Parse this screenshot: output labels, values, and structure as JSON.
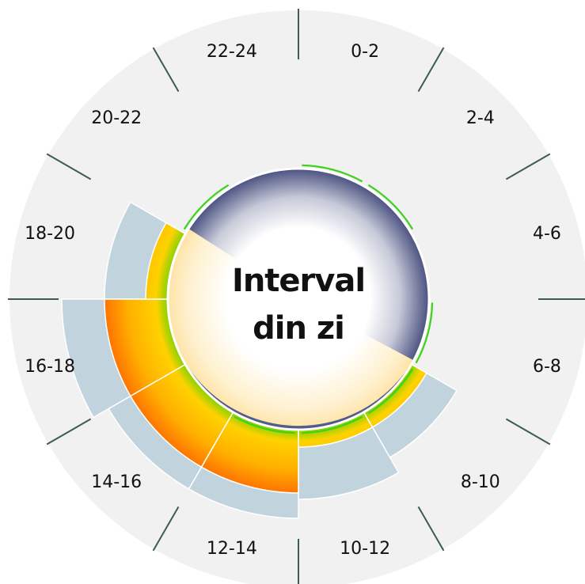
{
  "chart_data": {
    "type": "radial-bar",
    "center_title": [
      "Interval",
      "din zi"
    ],
    "categories": [
      "0-2",
      "2-4",
      "4-6",
      "6-8",
      "8-10",
      "10-12",
      "12-14",
      "14-16",
      "16-18",
      "18-20",
      "20-22",
      "22-24"
    ],
    "series": [
      {
        "values": [
          0,
          0,
          0,
          0,
          0.33,
          0.44,
          0.56,
          0.56,
          0.67,
          0.4,
          0,
          0
        ]
      },
      {
        "values": [
          0,
          0,
          0,
          0,
          0.11,
          0.11,
          0.4,
          0.4,
          0.4,
          0.14,
          0,
          0
        ]
      },
      {
        "values": [
          0.09,
          0.09,
          0,
          0.09,
          0.09,
          0.09,
          0.09,
          0,
          0,
          0,
          0.09,
          0
        ]
      }
    ],
    "gradient_colors": [
      "#4a5180",
      "#fde9b8",
      "#ffd200",
      "#5ad300",
      "#ff6a00"
    ],
    "bar_color": "#c1d4dd",
    "background_color": "#f1f1f1",
    "tick_color": "#3d5a5a",
    "accent_green": "#3fd11e"
  }
}
